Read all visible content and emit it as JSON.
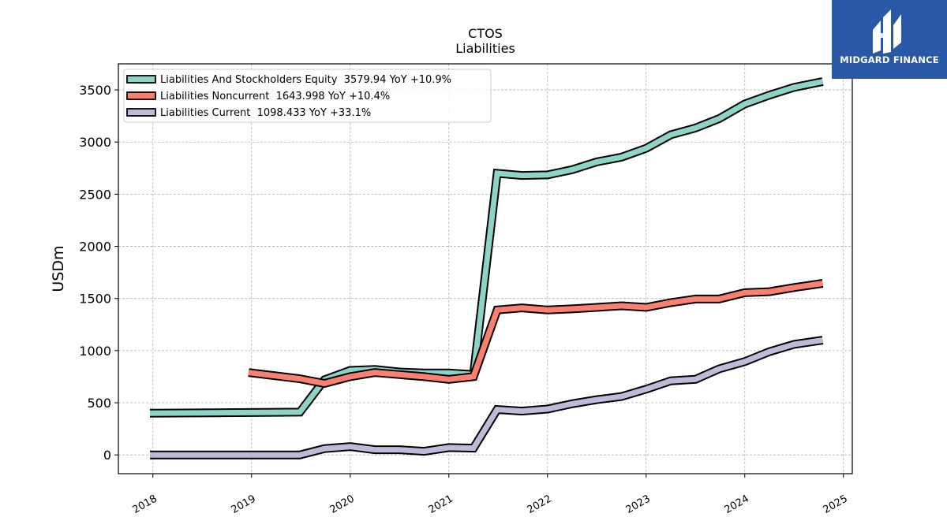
{
  "chart_data": {
    "type": "line",
    "title": "CTOS",
    "subtitle": "Liabilities",
    "ylabel": "USDm",
    "xlabel": "",
    "ylim": [
      -180,
      3750
    ],
    "xlim": [
      2017.65,
      2025.09
    ],
    "yticks": [
      0,
      500,
      1000,
      1500,
      2000,
      2500,
      3000,
      3500
    ],
    "xticks": [
      "2018",
      "2019",
      "2020",
      "2021",
      "2022",
      "2023",
      "2024",
      "2025"
    ],
    "grid": true,
    "legend_position": "top-left",
    "series": [
      {
        "name": "Liabilities And Stockholders Equity  3579.94 YoY +10.9%",
        "color": "#8dd3c7",
        "points": [
          [
            2017.97,
            400
          ],
          [
            2019.49,
            410
          ],
          [
            2019.74,
            720
          ],
          [
            2020.0,
            810
          ],
          [
            2020.25,
            820
          ],
          [
            2020.5,
            795
          ],
          [
            2020.75,
            785
          ],
          [
            2021.0,
            785
          ],
          [
            2021.25,
            770
          ],
          [
            2021.49,
            2700
          ],
          [
            2021.74,
            2680
          ],
          [
            2022.0,
            2685
          ],
          [
            2022.25,
            2735
          ],
          [
            2022.5,
            2810
          ],
          [
            2022.75,
            2855
          ],
          [
            2023.0,
            2940
          ],
          [
            2023.25,
            3070
          ],
          [
            2023.5,
            3135
          ],
          [
            2023.74,
            3225
          ],
          [
            2024.0,
            3365
          ],
          [
            2024.25,
            3450
          ],
          [
            2024.5,
            3525
          ],
          [
            2024.79,
            3580
          ]
        ]
      },
      {
        "name": "Liabilities Noncurrent  1643.998 YoY +10.4%",
        "color": "#fb8072",
        "points": [
          [
            2018.97,
            790
          ],
          [
            2019.49,
            730
          ],
          [
            2019.74,
            685
          ],
          [
            2020.0,
            750
          ],
          [
            2020.25,
            790
          ],
          [
            2020.5,
            770
          ],
          [
            2020.75,
            750
          ],
          [
            2021.0,
            725
          ],
          [
            2021.25,
            750
          ],
          [
            2021.49,
            1390
          ],
          [
            2021.74,
            1410
          ],
          [
            2022.0,
            1390
          ],
          [
            2022.25,
            1400
          ],
          [
            2022.5,
            1415
          ],
          [
            2022.75,
            1430
          ],
          [
            2023.0,
            1415
          ],
          [
            2023.25,
            1460
          ],
          [
            2023.5,
            1495
          ],
          [
            2023.74,
            1495
          ],
          [
            2024.0,
            1555
          ],
          [
            2024.25,
            1565
          ],
          [
            2024.5,
            1605
          ],
          [
            2024.79,
            1645
          ]
        ]
      },
      {
        "name": "Liabilities Current  1098.433 YoY +33.1%",
        "color": "#bebada",
        "points": [
          [
            2017.97,
            0
          ],
          [
            2019.49,
            0
          ],
          [
            2019.74,
            60
          ],
          [
            2020.0,
            80
          ],
          [
            2020.25,
            50
          ],
          [
            2020.5,
            50
          ],
          [
            2020.75,
            35
          ],
          [
            2021.0,
            70
          ],
          [
            2021.25,
            65
          ],
          [
            2021.49,
            435
          ],
          [
            2021.74,
            420
          ],
          [
            2022.0,
            440
          ],
          [
            2022.25,
            490
          ],
          [
            2022.5,
            530
          ],
          [
            2022.75,
            560
          ],
          [
            2023.0,
            630
          ],
          [
            2023.25,
            710
          ],
          [
            2023.5,
            725
          ],
          [
            2023.74,
            825
          ],
          [
            2024.0,
            895
          ],
          [
            2024.25,
            990
          ],
          [
            2024.5,
            1060
          ],
          [
            2024.79,
            1100
          ]
        ]
      }
    ]
  },
  "logo": {
    "text": "MIDGARD FINANCE",
    "background": "#2b57a7"
  }
}
